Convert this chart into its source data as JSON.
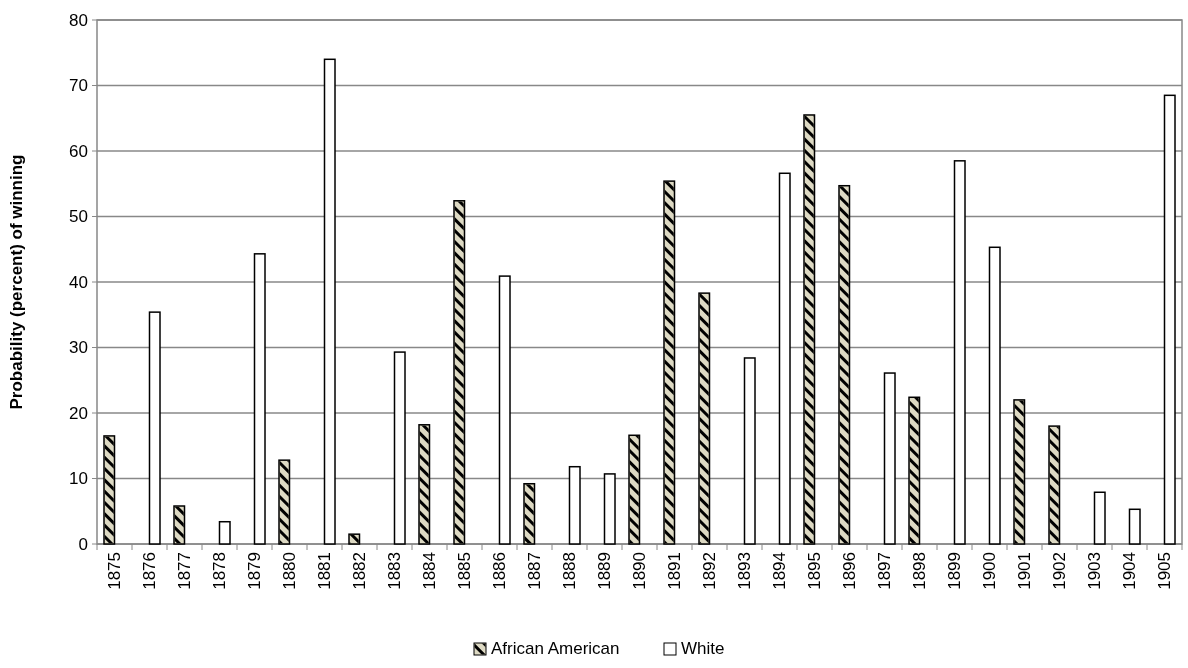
{
  "chart_data": {
    "type": "bar",
    "ylabel": "Probability (percent) of winning",
    "categories": [
      "1875",
      "1876",
      "1877",
      "1878",
      "1879",
      "1880",
      "1881",
      "1882",
      "1883",
      "1884",
      "1885",
      "1886",
      "1887",
      "1888",
      "1889",
      "1890",
      "1891",
      "1892",
      "1893",
      "1894",
      "1895",
      "1896",
      "1897",
      "1898",
      "1899",
      "1900",
      "1901",
      "1902",
      "1903",
      "1904",
      "1905"
    ],
    "series": [
      {
        "name": "African American",
        "color": "#ddd9c3",
        "values": [
          16.5,
          null,
          5.8,
          null,
          null,
          12.8,
          null,
          1.5,
          null,
          18.2,
          52.4,
          null,
          9.2,
          null,
          null,
          16.6,
          55.4,
          38.3,
          null,
          null,
          65.5,
          54.7,
          null,
          22.4,
          null,
          null,
          22.0,
          18.0,
          null,
          null,
          null
        ]
      },
      {
        "name": "White",
        "color": "#ffffff",
        "values": [
          null,
          35.4,
          null,
          3.4,
          44.3,
          null,
          74.0,
          null,
          29.3,
          null,
          null,
          40.9,
          null,
          11.8,
          10.7,
          null,
          null,
          null,
          28.4,
          56.6,
          null,
          null,
          26.1,
          null,
          58.5,
          45.3,
          null,
          null,
          7.9,
          5.3,
          68.5
        ]
      }
    ],
    "ylim": [
      0,
      80
    ],
    "yticks": [
      0,
      10,
      20,
      30,
      40,
      50,
      60,
      70,
      80
    ],
    "grid": "y",
    "legend": "bottom"
  }
}
